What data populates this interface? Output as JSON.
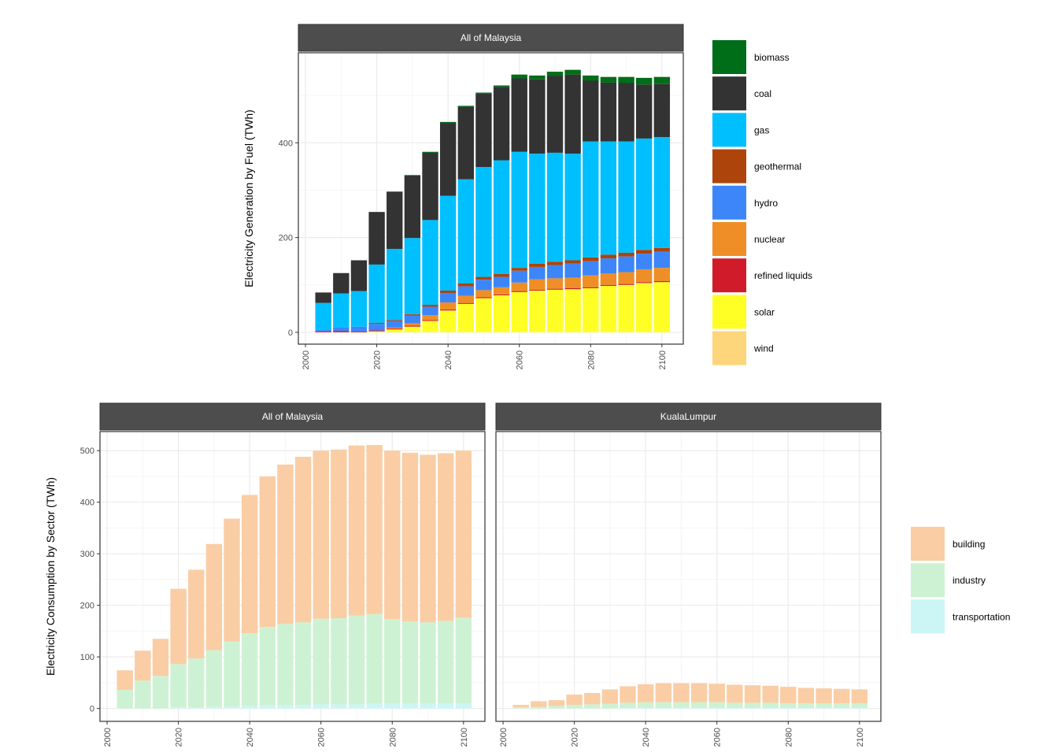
{
  "chart_data": [
    {
      "type": "bar",
      "stacked": true,
      "facets": [
        "All of Malaysia"
      ],
      "ylabel": "Electricity Generation by Fuel (TWh)",
      "xlabel": "",
      "x": [
        2005,
        2010,
        2015,
        2020,
        2025,
        2030,
        2035,
        2040,
        2045,
        2050,
        2055,
        2060,
        2065,
        2070,
        2075,
        2080,
        2085,
        2090,
        2095,
        2100
      ],
      "xticks": [
        2000,
        2020,
        2040,
        2060,
        2080,
        2100
      ],
      "yticks": [
        0,
        200,
        400
      ],
      "xlim": [
        1998,
        2106
      ],
      "ylim": [
        -25,
        590
      ],
      "grid": true,
      "legend_position": "right",
      "series": [
        {
          "name": "solar",
          "color": "#FFFF26",
          "values": [
            0,
            0,
            0,
            2,
            6,
            12,
            24,
            46,
            60,
            72,
            78,
            85,
            88,
            90,
            91,
            93,
            98,
            100,
            104,
            106
          ]
        },
        {
          "name": "refined liquids",
          "color": "#D01C2A",
          "values": [
            2,
            3,
            2,
            2,
            2,
            2,
            2,
            2,
            2,
            2,
            2,
            2,
            2,
            2,
            2,
            2,
            2,
            2,
            2,
            2
          ]
        },
        {
          "name": "nuclear",
          "color": "#EF8E27",
          "values": [
            0,
            0,
            0,
            0,
            2,
            5,
            10,
            15,
            15,
            15,
            15,
            18,
            22,
            22,
            22,
            25,
            24,
            25,
            27,
            28
          ]
        },
        {
          "name": "hydro",
          "color": "#3D86F9",
          "values": [
            4,
            7,
            10,
            14,
            14,
            16,
            18,
            20,
            20,
            22,
            22,
            25,
            26,
            28,
            30,
            30,
            32,
            33,
            33,
            34
          ]
        },
        {
          "name": "geothermal",
          "color": "#AD440C",
          "values": [
            0,
            0,
            0,
            2,
            2,
            3,
            4,
            5,
            6,
            6,
            6,
            6,
            7,
            7,
            7,
            8,
            8,
            8,
            8,
            8
          ]
        },
        {
          "name": "gas",
          "color": "#00BFFF",
          "values": [
            56,
            72,
            75,
            123,
            150,
            161,
            179,
            200,
            220,
            232,
            240,
            245,
            232,
            230,
            225,
            245,
            239,
            235,
            235,
            234
          ]
        },
        {
          "name": "coal",
          "color": "#333333",
          "values": [
            22,
            43,
            65,
            111,
            121,
            132,
            142,
            154,
            153,
            155,
            155,
            155,
            157,
            162,
            167,
            128,
            124,
            123,
            114,
            112
          ]
        },
        {
          "name": "biomass",
          "color": "#006D18",
          "values": [
            0,
            0,
            0,
            0,
            0,
            1,
            2,
            2,
            2,
            2,
            3,
            8,
            8,
            9,
            10,
            11,
            12,
            13,
            14,
            15
          ]
        },
        {
          "name": "wind",
          "color": "#FDD67B",
          "values": [
            0,
            0,
            0,
            0,
            0,
            0,
            0,
            0,
            0,
            0,
            0,
            0,
            0,
            0,
            0,
            0,
            0,
            0,
            0,
            0
          ]
        }
      ],
      "legend": [
        "biomass",
        "coal",
        "gas",
        "geothermal",
        "hydro",
        "nuclear",
        "refined liquids",
        "solar",
        "wind"
      ]
    },
    {
      "type": "bar",
      "stacked": true,
      "facets": [
        "All of Malaysia",
        "KualaLumpur"
      ],
      "ylabel": "Electricity Consumption by Sector (TWh)",
      "xlabel": "",
      "x": [
        2005,
        2010,
        2015,
        2020,
        2025,
        2030,
        2035,
        2040,
        2045,
        2050,
        2055,
        2060,
        2065,
        2070,
        2075,
        2080,
        2085,
        2090,
        2095,
        2100
      ],
      "xticks": [
        2000,
        2020,
        2040,
        2060,
        2080,
        2100
      ],
      "yticks": [
        0,
        100,
        200,
        300,
        400,
        500
      ],
      "xlim": [
        1998,
        2106
      ],
      "ylim": [
        -25,
        537
      ],
      "grid": true,
      "legend_position": "right",
      "panels": [
        {
          "facet": "All of Malaysia",
          "series": [
            {
              "name": "transportation",
              "color": "#CCF5F5",
              "values": [
                0,
                0,
                0,
                2,
                2,
                3,
                4,
                5,
                6,
                6,
                7,
                8,
                8,
                8,
                9,
                9,
                9,
                9,
                10,
                10
              ]
            },
            {
              "name": "industry",
              "color": "#CDF2D3",
              "values": [
                36,
                54,
                63,
                84,
                95,
                110,
                126,
                141,
                152,
                158,
                160,
                166,
                167,
                172,
                174,
                164,
                160,
                158,
                160,
                166
              ]
            },
            {
              "name": "building",
              "color": "#FACDA5",
              "values": [
                38,
                58,
                72,
                146,
                172,
                206,
                238,
                268,
                292,
                309,
                321,
                326,
                327,
                330,
                328,
                327,
                327,
                325,
                325,
                324
              ]
            }
          ]
        },
        {
          "facet": "KualaLumpur",
          "series": [
            {
              "name": "transportation",
              "color": "#CCF5F5",
              "values": [
                0,
                0,
                0,
                0,
                0,
                0,
                1,
                1,
                1,
                1,
                1,
                1,
                1,
                1,
                1,
                1,
                1,
                1,
                1,
                1
              ]
            },
            {
              "name": "industry",
              "color": "#CDF2D3",
              "values": [
                2,
                3,
                5,
                7,
                8,
                9,
                10,
                11,
                11,
                11,
                11,
                11,
                10,
                10,
                10,
                9,
                9,
                9,
                9,
                9
              ]
            },
            {
              "name": "building",
              "color": "#FACDA5",
              "values": [
                5,
                11,
                11,
                20,
                22,
                28,
                32,
                35,
                37,
                37,
                37,
                36,
                35,
                34,
                33,
                32,
                30,
                29,
                28,
                27
              ]
            }
          ]
        }
      ],
      "legend": [
        "building",
        "industry",
        "transportation"
      ]
    }
  ],
  "style": {
    "strip_fill": "#4D4D4D",
    "grid_major": "#EBEBEB",
    "grid_minor": "#F5F5F5",
    "panel_border": "#333333"
  }
}
